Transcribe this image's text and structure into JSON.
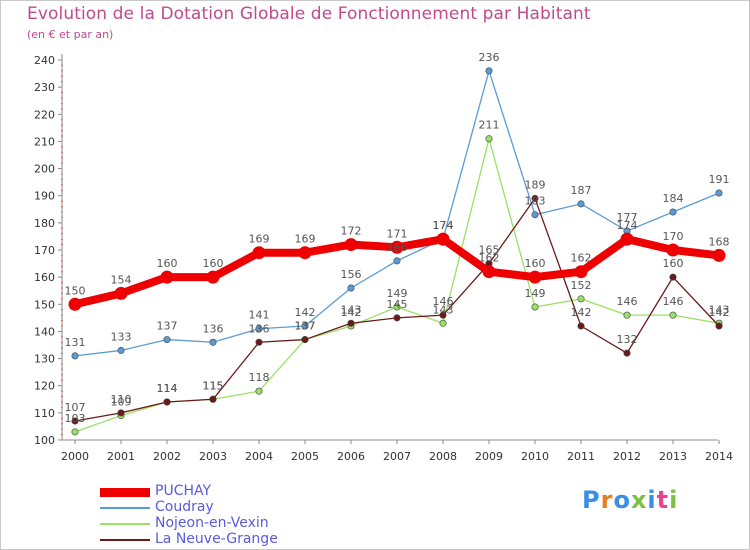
{
  "header": {
    "title": "Evolution de la Dotation Globale de Fonctionnement par Habitant",
    "subtitle": "(en € et par an)"
  },
  "chart_data": {
    "type": "line",
    "title": "Evolution de la Dotation Globale de Fonctionnement par Habitant",
    "subtitle": "(en € et par an)",
    "xlabel": "",
    "ylabel": "",
    "ylim": [
      100,
      240
    ],
    "y_ticks": [
      100,
      110,
      120,
      130,
      140,
      150,
      160,
      170,
      180,
      190,
      200,
      210,
      220,
      230,
      240
    ],
    "grid": false,
    "legend_position": "bottom-left",
    "x": [
      "2000",
      "2001",
      "2002",
      "2003",
      "2004",
      "2005",
      "2006",
      "2007",
      "2008",
      "2009",
      "2010",
      "2011",
      "2012",
      "2013",
      "2014"
    ],
    "series": [
      {
        "name": "PUCHAY",
        "color": "#ee0000",
        "values": [
          150,
          154,
          160,
          160,
          169,
          169,
          172,
          171,
          174,
          162,
          160,
          162,
          174,
          170,
          168
        ]
      },
      {
        "name": "Coudray",
        "color": "#5b9bd5",
        "values": [
          131,
          133,
          137,
          136,
          141,
          142,
          156,
          166,
          174,
          236,
          183,
          187,
          177,
          184,
          191
        ]
      },
      {
        "name": "Nojeon-en-Vexin",
        "color": "#99e066",
        "values": [
          103,
          109,
          114,
          115,
          118,
          137,
          142,
          149,
          143,
          211,
          149,
          152,
          146,
          146,
          143
        ]
      },
      {
        "name": "La Neuve-Grange",
        "color": "#6b1a1a",
        "values": [
          107,
          110,
          114,
          115,
          136,
          137,
          143,
          145,
          146,
          165,
          189,
          142,
          132,
          160,
          142
        ]
      }
    ]
  },
  "logo": {
    "text": "Proxiti",
    "colors": [
      "#3a8ee6",
      "#e67e22",
      "#3a8ee6",
      "#7cc242",
      "#3a8ee6",
      "#e84393",
      "#7cc242"
    ]
  }
}
